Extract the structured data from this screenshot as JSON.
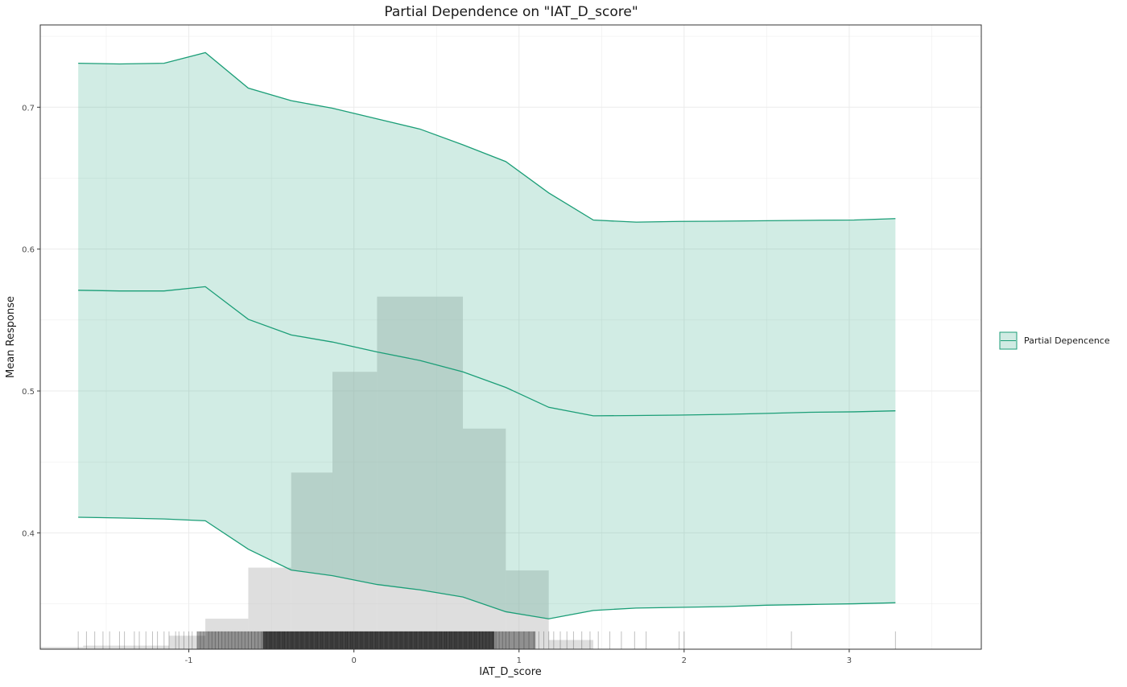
{
  "chart_data": {
    "type": "line",
    "title": "Partial Dependence on \"IAT_D_score\"",
    "xlabel": "IAT_D_score",
    "ylabel": "Mean Response",
    "xlim": [
      -1.9,
      3.8
    ],
    "ylim": [
      0.318,
      0.758
    ],
    "x_ticks": [
      -1,
      0,
      1,
      2,
      3
    ],
    "x_tick_labels": [
      "-1",
      "0",
      "1",
      "2",
      "3"
    ],
    "y_ticks": [
      0.4,
      0.5,
      0.6,
      0.7
    ],
    "y_tick_labels": [
      "0.4",
      "0.5",
      "0.6",
      "0.7"
    ],
    "grid": true,
    "legend": {
      "position": "right",
      "entries": [
        "Partial Depencence"
      ]
    },
    "colors": {
      "line": "#1b9e77",
      "ribbon": "#d0ebe3",
      "histogram": "#bebebe",
      "rug": "#000000",
      "panel_border": "#333333",
      "grid": "#ebebeb"
    },
    "series": [
      {
        "name": "Partial Depencence",
        "x": [
          -1.67,
          -1.42,
          -1.15,
          -0.9,
          -0.64,
          -0.38,
          -0.13,
          0.14,
          0.4,
          0.66,
          0.92,
          1.18,
          1.45,
          1.71,
          1.97,
          2.24,
          2.5,
          2.76,
          3.03,
          3.28
        ],
        "mean": [
          0.571,
          0.5705,
          0.5705,
          0.5735,
          0.5505,
          0.5395,
          0.5345,
          0.5275,
          0.5215,
          0.5135,
          0.5025,
          0.4885,
          0.4825,
          0.4827,
          0.483,
          0.4835,
          0.4842,
          0.485,
          0.4853,
          0.486
        ],
        "lower": [
          0.411,
          0.4105,
          0.4098,
          0.4085,
          0.3885,
          0.3738,
          0.3698,
          0.3636,
          0.3598,
          0.3548,
          0.3444,
          0.3394,
          0.3453,
          0.347,
          0.3475,
          0.348,
          0.349,
          0.3495,
          0.35,
          0.3507
        ],
        "upper": [
          0.731,
          0.7305,
          0.731,
          0.7385,
          0.7135,
          0.7046,
          0.6993,
          0.6918,
          0.6846,
          0.6735,
          0.6617,
          0.6396,
          0.6205,
          0.619,
          0.6195,
          0.6197,
          0.62,
          0.6203,
          0.6205,
          0.6215
        ]
      }
    ],
    "histogram": {
      "bin_edges": [
        -1.9,
        -1.64,
        -1.38,
        -1.12,
        -0.9,
        -0.64,
        -0.38,
        -0.13,
        0.14,
        0.66,
        0.92,
        1.18,
        1.45
      ],
      "heights": [
        0.3195,
        0.3205,
        0.3205,
        0.3275,
        0.3395,
        0.3755,
        0.4425,
        0.5135,
        0.5665,
        0.4735,
        0.3735,
        0.3245
      ]
    },
    "rug": {
      "x": [
        -1.67,
        -1.62,
        -1.57,
        -1.52,
        -1.48,
        -1.42,
        -1.39,
        -1.33,
        -1.3,
        -1.26,
        -1.22,
        -1.19,
        -1.15,
        -1.12,
        -1.08,
        -1.06,
        -1.03,
        -1.0,
        -0.98,
        -0.95,
        -0.93,
        -0.91,
        -0.88,
        -0.86,
        -0.84,
        -0.82,
        -0.8,
        -0.78,
        -0.76,
        -0.74,
        -0.72,
        -0.7,
        -0.68,
        -0.66,
        -0.64,
        -0.62,
        -0.6,
        -0.58,
        -0.56,
        -0.55,
        -0.53,
        -0.51,
        -0.5,
        -0.48,
        -0.46,
        -0.45,
        -0.43,
        -0.42,
        -0.4,
        -0.38,
        -0.37,
        -0.35,
        -0.34,
        -0.32,
        -0.31,
        -0.29,
        -0.28,
        -0.26,
        -0.25,
        -0.23,
        -0.22,
        -0.2,
        -0.19,
        -0.17,
        -0.16,
        -0.14,
        -0.13,
        -0.11,
        -0.1,
        -0.08,
        -0.07,
        -0.05,
        -0.04,
        -0.02,
        -0.01,
        0.01,
        0.02,
        0.04,
        0.05,
        0.07,
        0.08,
        0.1,
        0.11,
        0.13,
        0.14,
        0.16,
        0.17,
        0.19,
        0.2,
        0.22,
        0.23,
        0.25,
        0.26,
        0.28,
        0.29,
        0.31,
        0.32,
        0.34,
        0.35,
        0.37,
        0.38,
        0.4,
        0.41,
        0.43,
        0.44,
        0.46,
        0.47,
        0.49,
        0.5,
        0.52,
        0.53,
        0.55,
        0.56,
        0.58,
        0.59,
        0.61,
        0.62,
        0.64,
        0.65,
        0.67,
        0.68,
        0.7,
        0.71,
        0.73,
        0.74,
        0.76,
        0.78,
        0.8,
        0.82,
        0.84,
        0.86,
        0.88,
        0.9,
        0.92,
        0.94,
        0.97,
        1.0,
        1.03,
        1.06,
        1.09,
        1.12,
        1.15,
        1.18,
        1.21,
        1.25,
        1.29,
        1.33,
        1.38,
        1.43,
        1.48,
        1.55,
        1.62,
        1.7,
        1.77,
        1.97,
        2.0,
        2.65,
        3.28
      ]
    }
  }
}
